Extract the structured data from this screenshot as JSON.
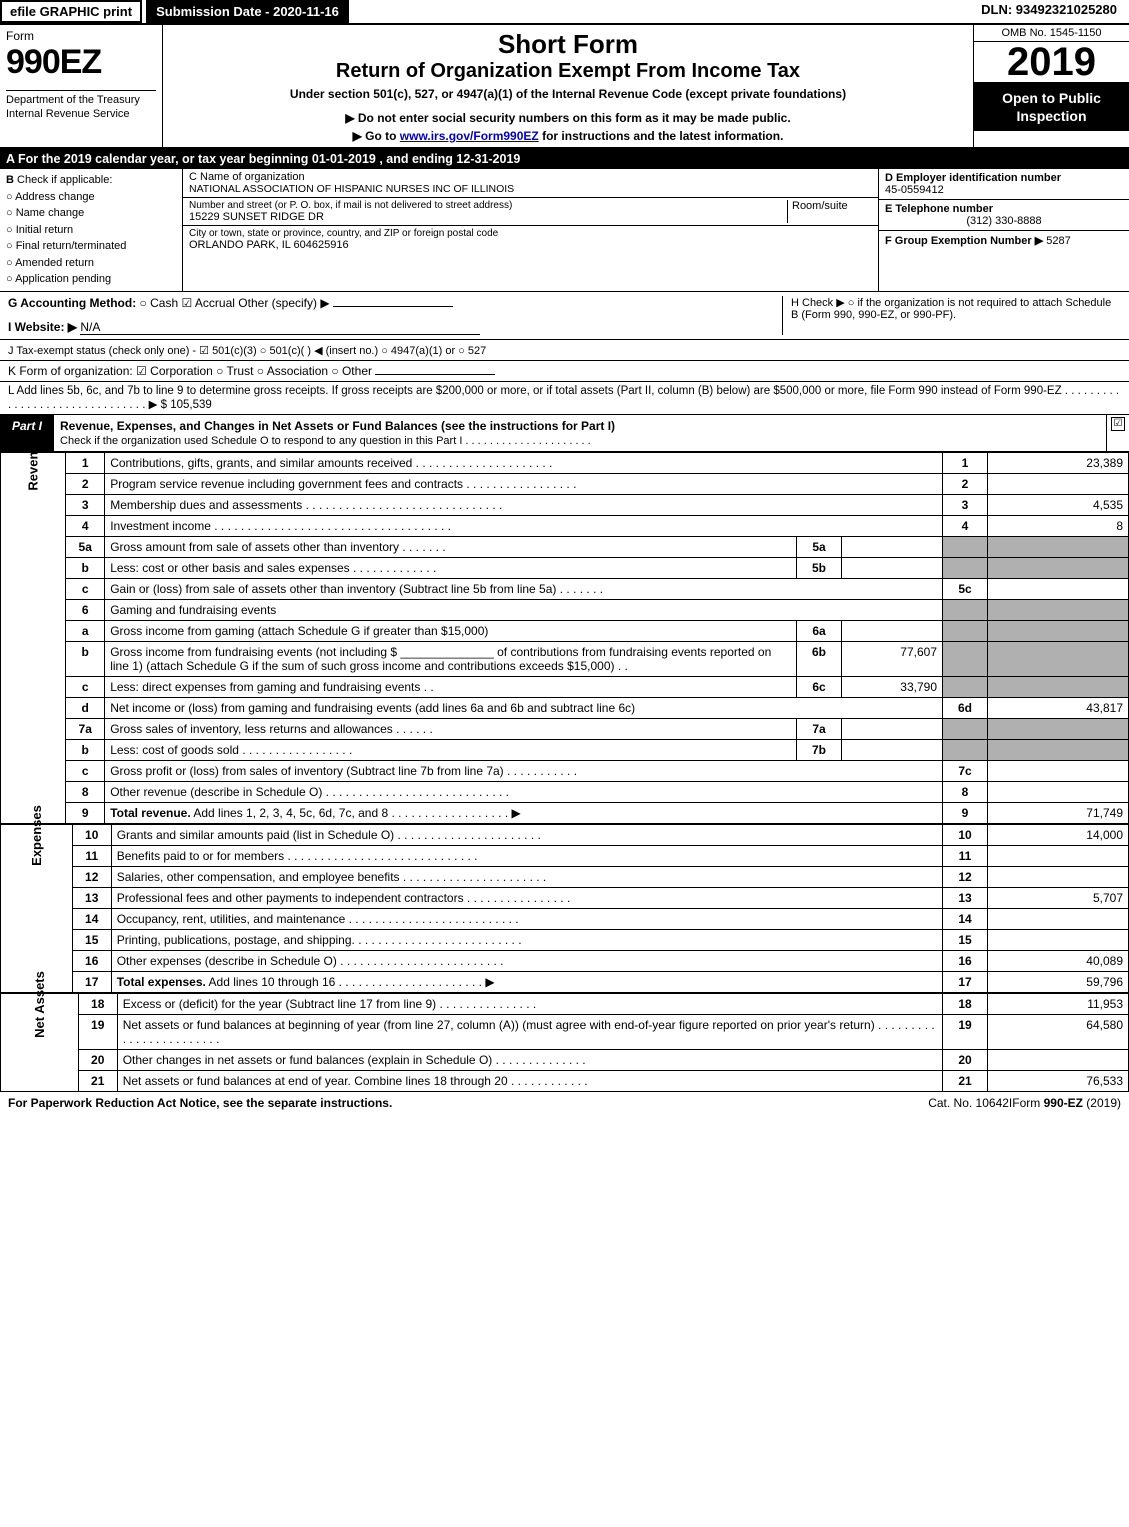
{
  "topbar": {
    "efile": "efile GRAPHIC print",
    "submission": "Submission Date - 2020-11-16",
    "dln": "DLN: 93492321025280"
  },
  "title": {
    "form_word": "Form",
    "form_num": "990EZ",
    "h1": "Short Form",
    "h2": "Return of Organization Exempt From Income Tax",
    "sub1": "Under section 501(c), 527, or 4947(a)(1) of the Internal Revenue Code (except private foundations)",
    "sub2": "▶ Do not enter social security numbers on this form as it may be made public.",
    "sub3_pre": "▶ Go to ",
    "sub3_link": "www.irs.gov/Form990EZ",
    "sub3_post": " for instructions and the latest information.",
    "dept1": "Department of the Treasury",
    "dept2": "Internal Revenue Service",
    "omb": "OMB No. 1545-1150",
    "year": "2019",
    "open": "Open to Public Inspection"
  },
  "period": {
    "prefix": "A  For the 2019 calendar year, or tax year beginning ",
    "begin": "01-01-2019",
    "mid": " , and ending ",
    "end": "12-31-2019"
  },
  "B": {
    "label": "Check if applicable:",
    "opts": [
      "Address change",
      "Name change",
      "Initial return",
      "Final return/terminated",
      "Amended return",
      "Application pending"
    ]
  },
  "C": {
    "name_lbl": "C Name of organization",
    "name": "NATIONAL ASSOCIATION OF HISPANIC NURSES INC OF ILLINOIS",
    "street_lbl": "Number and street (or P. O. box, if mail is not delivered to street address)",
    "room_lbl": "Room/suite",
    "street": "15229 SUNSET RIDGE DR",
    "city_lbl": "City or town, state or province, country, and ZIP or foreign postal code",
    "city": "ORLANDO PARK, IL  604625916"
  },
  "DE": {
    "D_lbl": "D Employer identification number",
    "D": "45-0559412",
    "E_lbl": "E Telephone number",
    "E": "(312) 330-8888",
    "F_lbl": "F Group Exemption Number  ▶",
    "F": "5287"
  },
  "G": {
    "label": "G Accounting Method:",
    "cash": "○ Cash",
    "accrual": "☑ Accrual",
    "other": "Other (specify) ▶"
  },
  "H": {
    "text": "H   Check ▶  ○  if the organization is not required to attach Schedule B (Form 990, 990-EZ, or 990-PF)."
  },
  "I": {
    "label": "I Website: ▶",
    "val": "N/A"
  },
  "J": {
    "label": "J Tax-exempt status (check only one) -  ☑ 501(c)(3)  ○  501(c)(  ) ◀ (insert no.)  ○  4947(a)(1) or  ○  527"
  },
  "K": {
    "label": "K Form of organization:   ☑ Corporation   ○ Trust   ○ Association   ○ Other"
  },
  "L": {
    "text": "L Add lines 5b, 6c, and 7b to line 9 to determine gross receipts. If gross receipts are $200,000 or more, or if total assets (Part II, column (B) below) are $500,000 or more, file Form 990 instead of Form 990-EZ  . . . . . . . . . . . . . . . . . . . . . . . . . . . . . . . ▶ $ ",
    "amount": "105,539"
  },
  "partI": {
    "tag": "Part I",
    "title": "Revenue, Expenses, and Changes in Net Assets or Fund Balances (see the instructions for Part I)",
    "check_note": "Check if the organization used Schedule O to respond to any question in this Part I . . . . . . . . . . . . . . . . . . . . .",
    "check_val": "☑"
  },
  "sections": [
    {
      "side": "Revenue",
      "rows": [
        {
          "n": "1",
          "d": "Contributions, gifts, grants, and similar amounts received . . . . . . . . . . . . . . . . . . . . .",
          "ln": "1",
          "a": "23,389"
        },
        {
          "n": "2",
          "d": "Program service revenue including government fees and contracts . . . . . . . . . . . . . . . . .",
          "ln": "2",
          "a": ""
        },
        {
          "n": "3",
          "d": "Membership dues and assessments . . . . . . . . . . . . . . . . . . . . . . . . . . . . . .",
          "ln": "3",
          "a": "4,535"
        },
        {
          "n": "4",
          "d": "Investment income . . . . . . . . . . . . . . . . . . . . . . . . . . . . . . . . . . . .",
          "ln": "4",
          "a": "8"
        },
        {
          "n": "5a",
          "d": "Gross amount from sale of assets other than inventory  . . . . . . .",
          "sub": "5a",
          "sa": "",
          "ln": "",
          "a": "",
          "grey": true
        },
        {
          "n": "b",
          "d": "Less: cost or other basis and sales expenses . . . . . . . . . . . . .",
          "sub": "5b",
          "sa": "",
          "ln": "",
          "a": "",
          "grey": true
        },
        {
          "n": "c",
          "d": "Gain or (loss) from sale of assets other than inventory (Subtract line 5b from line 5a) . . . . . . .",
          "ln": "5c",
          "a": ""
        },
        {
          "n": "6",
          "d": "Gaming and fundraising events",
          "ln": "",
          "a": "",
          "grey": true,
          "nosub": true
        },
        {
          "n": "a",
          "d": "Gross income from gaming (attach Schedule G if greater than $15,000)",
          "sub": "6a",
          "sa": "",
          "ln": "",
          "a": "",
          "grey": true
        },
        {
          "n": "b",
          "d": "Gross income from fundraising events (not including $ ______________ of contributions from fundraising events reported on line 1) (attach Schedule G if the sum of such gross income and contributions exceeds $15,000)    . .",
          "sub": "6b",
          "sa": "77,607",
          "ln": "",
          "a": "",
          "grey": true
        },
        {
          "n": "c",
          "d": "Less: direct expenses from gaming and fundraising events      . .",
          "sub": "6c",
          "sa": "33,790",
          "ln": "",
          "a": "",
          "grey": true
        },
        {
          "n": "d",
          "d": "Net income or (loss) from gaming and fundraising events (add lines 6a and 6b and subtract line 6c)",
          "ln": "6d",
          "a": "43,817"
        },
        {
          "n": "7a",
          "d": "Gross sales of inventory, less returns and allowances  . . . . . .",
          "sub": "7a",
          "sa": "",
          "ln": "",
          "a": "",
          "grey": true
        },
        {
          "n": "b",
          "d": "Less: cost of goods sold        . . . . . . . . . . . . . . . . .",
          "sub": "7b",
          "sa": "",
          "ln": "",
          "a": "",
          "grey": true
        },
        {
          "n": "c",
          "d": "Gross profit or (loss) from sales of inventory (Subtract line 7b from line 7a) . . . . . . . . . . .",
          "ln": "7c",
          "a": ""
        },
        {
          "n": "8",
          "d": "Other revenue (describe in Schedule O) . . . . . . . . . . . . . . . . . . . . . . . . . . . .",
          "ln": "8",
          "a": ""
        },
        {
          "n": "9",
          "d": "<b>Total revenue.</b> Add lines 1, 2, 3, 4, 5c, 6d, 7c, and 8  . . . . . . . . . . . . . . . . . .   ▶",
          "ln": "9",
          "a": "71,749",
          "bold": true
        }
      ]
    },
    {
      "side": "Expenses",
      "rows": [
        {
          "n": "10",
          "d": "Grants and similar amounts paid (list in Schedule O) . . . . . . . . . . . . . . . . . . . . . .",
          "ln": "10",
          "a": "14,000"
        },
        {
          "n": "11",
          "d": "Benefits paid to or for members     . . . . . . . . . . . . . . . . . . . . . . . . . . . . .",
          "ln": "11",
          "a": ""
        },
        {
          "n": "12",
          "d": "Salaries, other compensation, and employee benefits . . . . . . . . . . . . . . . . . . . . . .",
          "ln": "12",
          "a": ""
        },
        {
          "n": "13",
          "d": "Professional fees and other payments to independent contractors . . . . . . . . . . . . . . . .",
          "ln": "13",
          "a": "5,707"
        },
        {
          "n": "14",
          "d": "Occupancy, rent, utilities, and maintenance . . . . . . . . . . . . . . . . . . . . . . . . . .",
          "ln": "14",
          "a": ""
        },
        {
          "n": "15",
          "d": "Printing, publications, postage, and shipping. . . . . . . . . . . . . . . . . . . . . . . . . .",
          "ln": "15",
          "a": ""
        },
        {
          "n": "16",
          "d": "Other expenses (describe in Schedule O)     . . . . . . . . . . . . . . . . . . . . . . . . .",
          "ln": "16",
          "a": "40,089"
        },
        {
          "n": "17",
          "d": "<b>Total expenses.</b> Add lines 10 through 16    . . . . . . . . . . . . . . . . . . . . . .   ▶",
          "ln": "17",
          "a": "59,796",
          "bold": true
        }
      ]
    },
    {
      "side": "Net Assets",
      "rows": [
        {
          "n": "18",
          "d": "Excess or (deficit) for the year (Subtract line 17 from line 9)       . . . . . . . . . . . . . . .",
          "ln": "18",
          "a": "11,953"
        },
        {
          "n": "19",
          "d": "Net assets or fund balances at beginning of year (from line 27, column (A)) (must agree with end-of-year figure reported on prior year's return) . . . . . . . . . . . . . . . . . . . . . . . .",
          "ln": "19",
          "a": "64,580"
        },
        {
          "n": "20",
          "d": "Other changes in net assets or fund balances (explain in Schedule O) . . . . . . . . . . . . . .",
          "ln": "20",
          "a": ""
        },
        {
          "n": "21",
          "d": "Net assets or fund balances at end of year. Combine lines 18 through 20 . . . . . . . . . . . .",
          "ln": "21",
          "a": "76,533"
        }
      ]
    }
  ],
  "footer": {
    "left": "For Paperwork Reduction Act Notice, see the separate instructions.",
    "center": "Cat. No. 10642I",
    "right": "Form 990-EZ (2019)"
  },
  "colors": {
    "grey_fill": "#b0b0b0",
    "black": "#000000",
    "white": "#ffffff",
    "link": "#0000cc"
  }
}
